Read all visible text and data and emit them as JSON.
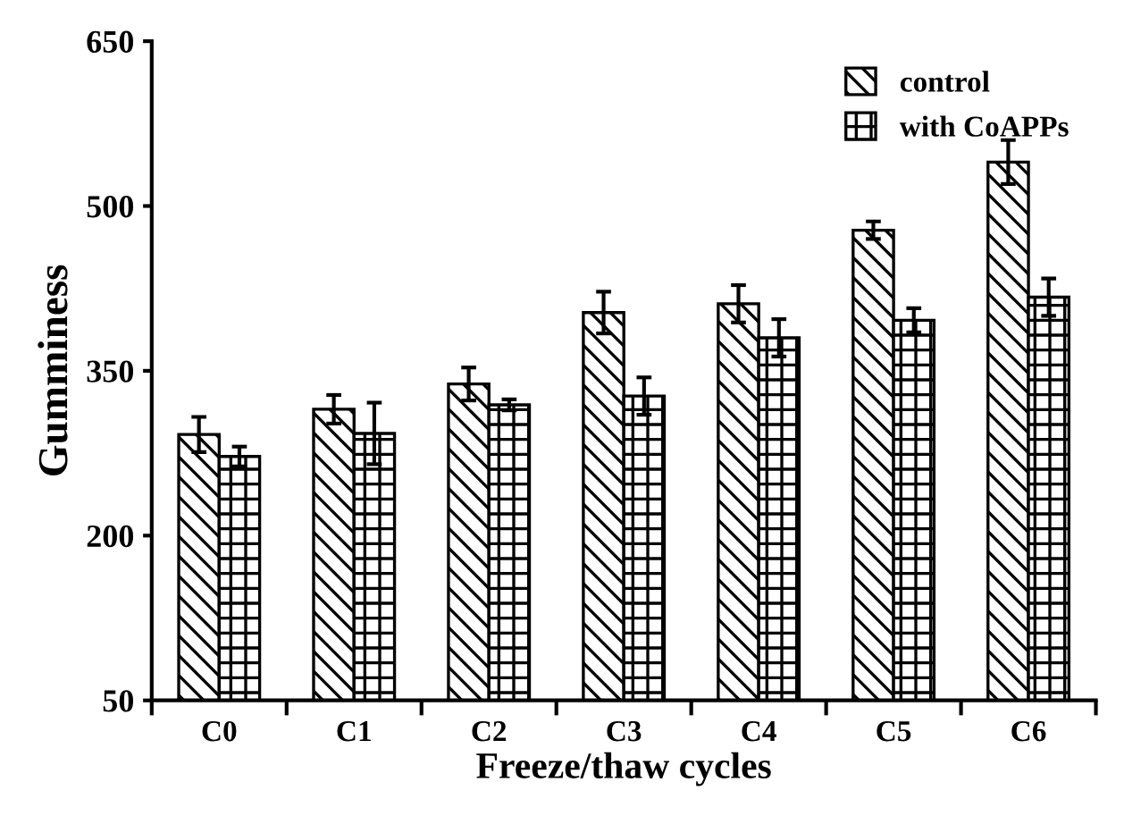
{
  "chart_data": {
    "type": "bar",
    "xlabel": "Freeze/thaw cycles",
    "ylabel": "Gumminess",
    "categories": [
      "C0",
      "C1",
      "C2",
      "C3",
      "C4",
      "C5",
      "C6"
    ],
    "series": [
      {
        "name": "control",
        "color": "#000000",
        "values": [
          292,
          315,
          338,
          403,
          411,
          478,
          540
        ],
        "errors": [
          16,
          13,
          15,
          19,
          17,
          8,
          20
        ]
      },
      {
        "name": "with CoAPPs",
        "color": "#000000",
        "values": [
          272,
          293,
          319,
          327,
          380,
          396,
          417
        ],
        "errors": [
          9,
          28,
          5,
          17,
          17,
          11,
          17
        ]
      }
    ],
    "ylim": [
      50,
      650
    ],
    "yticks": [
      50,
      200,
      350,
      500,
      650
    ],
    "grid": false,
    "legend": "top right"
  }
}
